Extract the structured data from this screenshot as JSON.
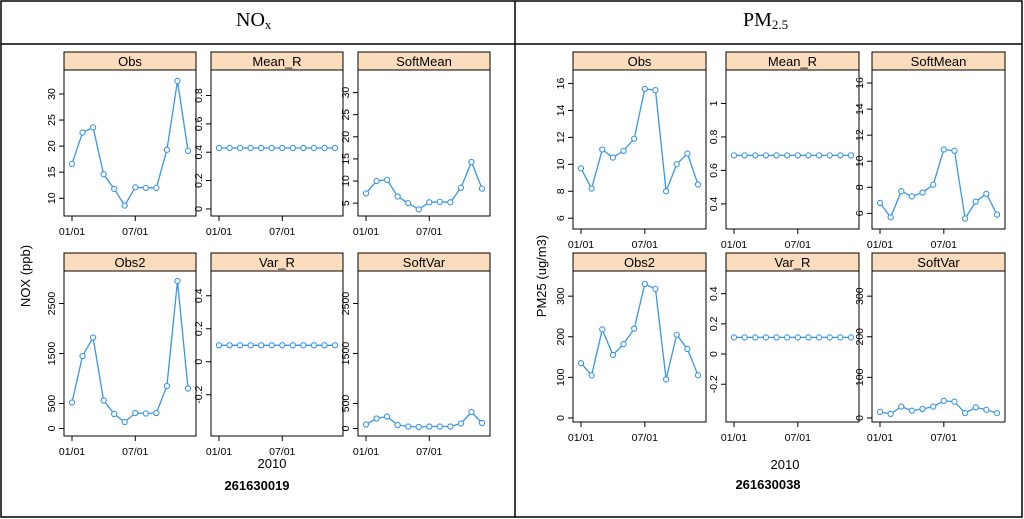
{
  "headers": {
    "left_main": "NO",
    "left_sub": "x",
    "right_main": "PM",
    "right_sub": "2.5"
  },
  "chart_data": [
    {
      "type": "line",
      "ylabel": "NOX (ppb)",
      "xlabel": "2010",
      "site_id": "261630019",
      "x_tick_labels": [
        "01/01",
        "07/01"
      ],
      "months": [
        "01",
        "02",
        "03",
        "04",
        "05",
        "06",
        "07",
        "08",
        "09",
        "10",
        "11",
        "12"
      ],
      "panels": [
        {
          "title": "Obs",
          "ylim": [
            6.6,
            34.6
          ],
          "yticks": [
            10,
            15,
            20,
            25,
            30
          ],
          "values": [
            16.6,
            22.6,
            23.6,
            14.6,
            11.8,
            8.6,
            12.1,
            12.0,
            12.0,
            19.3,
            32.5,
            19.1
          ]
        },
        {
          "title": "Mean_R",
          "ylim": [
            -0.05,
            0.98
          ],
          "yticks": [
            0.0,
            0.2,
            0.4,
            0.6,
            0.8
          ],
          "values": [
            0.43,
            0.43,
            0.43,
            0.43,
            0.43,
            0.43,
            0.43,
            0.43,
            0.43,
            0.43,
            0.43,
            0.43
          ]
        },
        {
          "title": "SoftMean",
          "ylim": [
            2.1,
            35.1
          ],
          "yticks": [
            5,
            10,
            15,
            20,
            25,
            30
          ],
          "values": [
            7.2,
            10.0,
            10.3,
            6.5,
            5.0,
            3.6,
            5.2,
            5.3,
            5.2,
            8.5,
            14.3,
            8.3
          ]
        },
        {
          "title": "Obs2",
          "ylim": [
            -150,
            3150
          ],
          "yticks": [
            0,
            500,
            1500,
            2500
          ],
          "values": [
            520,
            1450,
            1820,
            560,
            290,
            130,
            310,
            300,
            310,
            850,
            2950,
            800
          ]
        },
        {
          "title": "Var_R",
          "ylim": [
            -0.45,
            0.55
          ],
          "yticks": [
            -0.2,
            0.0,
            0.2,
            0.4
          ],
          "values": [
            0.1,
            0.1,
            0.1,
            0.1,
            0.1,
            0.1,
            0.1,
            0.1,
            0.1,
            0.1,
            0.1,
            0.1
          ]
        },
        {
          "title": "SoftVar",
          "ylim": [
            -150,
            3150
          ],
          "yticks": [
            0,
            500,
            1500,
            2500
          ],
          "values": [
            80,
            200,
            240,
            70,
            40,
            30,
            40,
            40,
            40,
            100,
            330,
            110
          ]
        }
      ]
    },
    {
      "type": "line",
      "ylabel": "PM25 (ug/m3)",
      "xlabel": "2010",
      "site_id": "261630038",
      "x_tick_labels": [
        "01/01",
        "07/01"
      ],
      "months": [
        "01",
        "02",
        "03",
        "04",
        "05",
        "06",
        "07",
        "08",
        "09",
        "10",
        "11",
        "12"
      ],
      "panels": [
        {
          "title": "Obs",
          "ylim": [
            5.2,
            17.0
          ],
          "yticks": [
            6,
            8,
            10,
            12,
            14,
            16
          ],
          "values": [
            9.7,
            8.2,
            11.1,
            10.5,
            11.0,
            11.9,
            15.6,
            15.5,
            8.0,
            10.0,
            10.8,
            8.5
          ]
        },
        {
          "title": "Mean_R",
          "ylim": [
            0.25,
            1.2
          ],
          "yticks": [
            0.4,
            0.6,
            0.8,
            1.0
          ],
          "values": [
            0.69,
            0.69,
            0.69,
            0.69,
            0.69,
            0.69,
            0.69,
            0.69,
            0.69,
            0.69,
            0.69,
            0.69
          ]
        },
        {
          "title": "SoftMean",
          "ylim": [
            4.8,
            17.0
          ],
          "yticks": [
            6,
            8,
            10,
            12,
            14,
            16
          ],
          "values": [
            6.8,
            5.7,
            7.7,
            7.3,
            7.6,
            8.2,
            10.9,
            10.8,
            5.6,
            6.9,
            7.5,
            5.9
          ]
        },
        {
          "title": "Obs2",
          "ylim": [
            -10,
            362
          ],
          "yticks": [
            0,
            100,
            200,
            300
          ],
          "values": [
            135,
            105,
            218,
            155,
            182,
            220,
            330,
            318,
            95,
            205,
            170,
            105
          ]
        },
        {
          "title": "Var_R",
          "ylim": [
            -0.45,
            0.55
          ],
          "yticks": [
            -0.2,
            0.0,
            0.2,
            0.4
          ],
          "values": [
            0.11,
            0.11,
            0.11,
            0.11,
            0.11,
            0.11,
            0.11,
            0.11,
            0.11,
            0.11,
            0.11,
            0.11
          ]
        },
        {
          "title": "SoftVar",
          "ylim": [
            -10,
            362
          ],
          "yticks": [
            0,
            100,
            200,
            300
          ],
          "values": [
            15,
            10,
            28,
            18,
            22,
            28,
            42,
            40,
            12,
            26,
            20,
            12
          ]
        }
      ]
    }
  ],
  "colors": {
    "line": "#3a96e8",
    "strip": "#fbdcbc",
    "axis": "#000000"
  }
}
